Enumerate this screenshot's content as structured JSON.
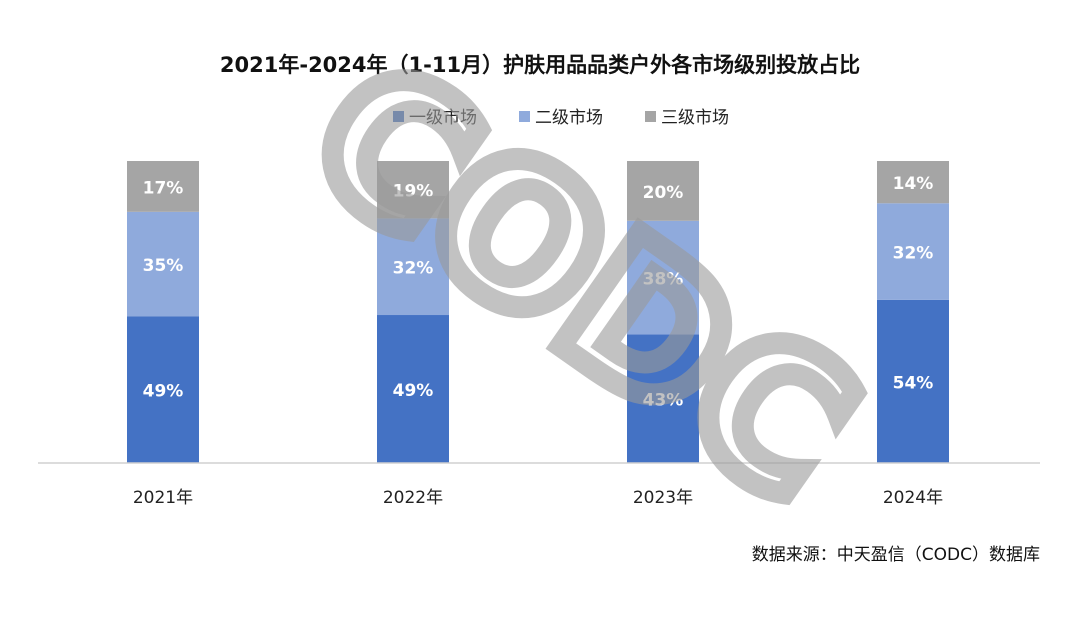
{
  "chart_data": {
    "type": "bar",
    "stacked": true,
    "title": "2021年-2024年（1-11月）护肤用品品类户外各市场级别投放占比",
    "categories": [
      "2021年",
      "2022年",
      "2023年",
      "2024年"
    ],
    "series": [
      {
        "name": "一级市场",
        "color": "#4472c4",
        "values": [
          49,
          49,
          43,
          54
        ],
        "labels": [
          "49%",
          "49%",
          "43%",
          "54%"
        ]
      },
      {
        "name": "二级市场",
        "color": "#8faadc",
        "values": [
          35,
          32,
          38,
          32
        ],
        "labels": [
          "35%",
          "32%",
          "38%",
          "32%"
        ]
      },
      {
        "name": "三级市场",
        "color": "#a5a5a5",
        "values": [
          17,
          19,
          20,
          14
        ],
        "labels": [
          "17%",
          "19%",
          "20%",
          "14%"
        ]
      }
    ],
    "ylim": [
      0,
      100
    ],
    "grid": false,
    "legend": "top-center",
    "source": "数据来源：中天盈信（CODC）数据库",
    "watermark": "CODC"
  }
}
